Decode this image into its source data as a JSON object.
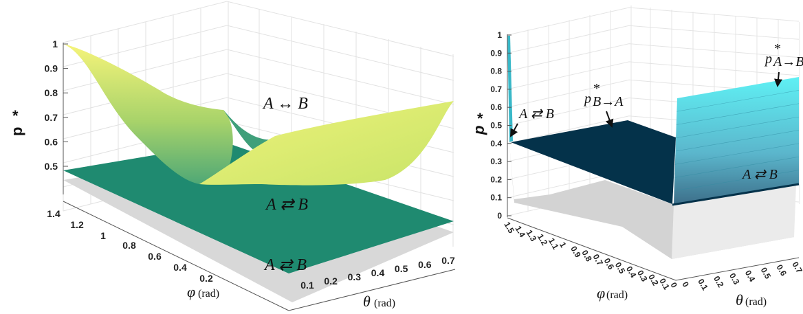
{
  "chart_data": [
    {
      "type": "surface",
      "zlabel": "p",
      "zlabel_superscript": "*",
      "xlabel_symbol": "φ",
      "xlabel_unit": "(rad)",
      "ylabel_symbol": "θ",
      "ylabel_unit": "(rad)",
      "zlim": [
        0.4,
        1
      ],
      "z_ticks": [
        "0.5",
        "0.6",
        "0.7",
        "0.8",
        "0.9",
        "1"
      ],
      "phi_ticks": [
        "0.2",
        "0.4",
        "0.6",
        "0.8",
        "1",
        "1.2",
        "1.4"
      ],
      "theta_ticks": [
        "0.1",
        "0.2",
        "0.3",
        "0.4",
        "0.5",
        "0.6",
        "0.7"
      ],
      "grid": true,
      "surfaces": [
        {
          "label": "A ↔ B",
          "colormap": "green-yellow",
          "samples": [
            {
              "phi": 1.5,
              "theta": 0,
              "p": 1.0
            },
            {
              "phi": 0.8,
              "theta": 0.35,
              "p": 0.45
            },
            {
              "phi": 0,
              "theta": 0.7,
              "p": 0.77
            },
            {
              "phi": 1.5,
              "theta": 0.7,
              "p": 0.72
            }
          ]
        },
        {
          "label": "A ⇄ B",
          "color": "#1f8a70",
          "p": 0.47
        },
        {
          "label": "A ⇄ B",
          "color": "#d6d6d6",
          "p": 0.42
        }
      ]
    },
    {
      "type": "surface",
      "zlabel": "p",
      "zlabel_superscript": "*",
      "xlabel_symbol": "φ",
      "xlabel_unit": "(rad)",
      "ylabel_symbol": "θ",
      "ylabel_unit": "(rad)",
      "zlim": [
        0,
        1
      ],
      "z_ticks": [
        "0",
        "0.1",
        "0.2",
        "0.3",
        "0.4",
        "0.5",
        "0.6",
        "0.7",
        "0.8",
        "0.9",
        "1"
      ],
      "phi_ticks": [
        "1.5",
        "1.4",
        "1.3",
        "1.2",
        "1.1",
        "1",
        "0.9",
        "0.8",
        "0.7",
        "0.6",
        "0.5",
        "0.4",
        "0.3",
        "0.2",
        "0.1",
        "0"
      ],
      "theta_ticks": [
        "0",
        "0.1",
        "0.2",
        "0.3",
        "0.4",
        "0.5",
        "0.6",
        "0.7"
      ],
      "grid": true,
      "surfaces": [
        {
          "label": "p*B→A",
          "color": "#04324a",
          "p": 0.4
        },
        {
          "label": "p*A→B",
          "colormap": "cyan",
          "p_range": [
            0.2,
            0.75
          ]
        },
        {
          "label": "A ⇄ B",
          "color": "#d4d4d4",
          "p_range": [
            0.05,
            0.2
          ]
        }
      ],
      "annotations": {
        "left": "A ⇄ B",
        "b_to_a_main": "p",
        "b_to_a_sub": "B→A",
        "a_to_b_main": "p",
        "a_to_b_sub": "A→B",
        "star": "*",
        "right": "A ⇄ B"
      }
    }
  ]
}
